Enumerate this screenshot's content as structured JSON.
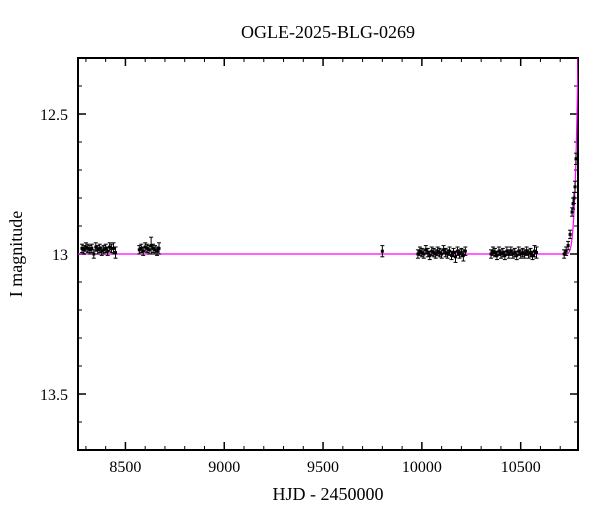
{
  "chart": {
    "type": "scatter+line",
    "title": "OGLE-2025-BLG-0269",
    "title_fontsize": 18,
    "xlabel": "HJD - 2450000",
    "ylabel": "I magnitude",
    "label_fontsize": 18,
    "tick_fontsize": 16,
    "xlim": [
      8260,
      10790
    ],
    "ylim": [
      13.7,
      12.3
    ],
    "xticks": [
      8500,
      9000,
      9500,
      10000,
      10500
    ],
    "yticks_numeric": [
      13.5,
      13,
      12.5
    ],
    "yticks_labels": [
      "13.5",
      "13",
      "12.5"
    ],
    "bg_color": "#ffffff",
    "axis_color": "#000000",
    "axis_width": 2,
    "tick_len": 8,
    "minor_tick_len": 4,
    "x_minor_step": 100,
    "y_minor_step": 0.1,
    "model_line": {
      "color": "#ff00ff",
      "width": 1.2,
      "baseline_y": 13.0,
      "rise_start_x": 10720,
      "rise_end_x": 10790,
      "rise_end_y": 12.3
    },
    "points": {
      "color": "#000000",
      "marker_size": 3,
      "err_cap": 2,
      "series": [
        {
          "x": 8280,
          "y": 12.98,
          "e": 0.015
        },
        {
          "x": 8290,
          "y": 12.985,
          "e": 0.015
        },
        {
          "x": 8300,
          "y": 12.975,
          "e": 0.015
        },
        {
          "x": 8310,
          "y": 12.98,
          "e": 0.015
        },
        {
          "x": 8320,
          "y": 12.985,
          "e": 0.015
        },
        {
          "x": 8330,
          "y": 12.98,
          "e": 0.015
        },
        {
          "x": 8340,
          "y": 13.0,
          "e": 0.015
        },
        {
          "x": 8350,
          "y": 12.975,
          "e": 0.015
        },
        {
          "x": 8360,
          "y": 12.985,
          "e": 0.015
        },
        {
          "x": 8370,
          "y": 12.98,
          "e": 0.015
        },
        {
          "x": 8380,
          "y": 12.99,
          "e": 0.015
        },
        {
          "x": 8390,
          "y": 12.985,
          "e": 0.015
        },
        {
          "x": 8400,
          "y": 12.98,
          "e": 0.015
        },
        {
          "x": 8410,
          "y": 12.99,
          "e": 0.015
        },
        {
          "x": 8420,
          "y": 12.975,
          "e": 0.015
        },
        {
          "x": 8430,
          "y": 12.98,
          "e": 0.015
        },
        {
          "x": 8440,
          "y": 12.98,
          "e": 0.02
        },
        {
          "x": 8450,
          "y": 12.995,
          "e": 0.02
        },
        {
          "x": 8570,
          "y": 12.985,
          "e": 0.015
        },
        {
          "x": 8580,
          "y": 12.98,
          "e": 0.015
        },
        {
          "x": 8590,
          "y": 12.99,
          "e": 0.015
        },
        {
          "x": 8600,
          "y": 12.975,
          "e": 0.015
        },
        {
          "x": 8610,
          "y": 12.98,
          "e": 0.015
        },
        {
          "x": 8620,
          "y": 12.985,
          "e": 0.015
        },
        {
          "x": 8630,
          "y": 12.97,
          "e": 0.03
        },
        {
          "x": 8640,
          "y": 12.98,
          "e": 0.015
        },
        {
          "x": 8650,
          "y": 12.985,
          "e": 0.015
        },
        {
          "x": 8660,
          "y": 12.99,
          "e": 0.015
        },
        {
          "x": 8670,
          "y": 12.98,
          "e": 0.02
        },
        {
          "x": 9800,
          "y": 12.99,
          "e": 0.02
        },
        {
          "x": 9980,
          "y": 13.0,
          "e": 0.015
        },
        {
          "x": 9990,
          "y": 12.99,
          "e": 0.015
        },
        {
          "x": 10000,
          "y": 12.995,
          "e": 0.015
        },
        {
          "x": 10010,
          "y": 13.0,
          "e": 0.015
        },
        {
          "x": 10020,
          "y": 12.985,
          "e": 0.015
        },
        {
          "x": 10030,
          "y": 12.995,
          "e": 0.015
        },
        {
          "x": 10040,
          "y": 13.005,
          "e": 0.015
        },
        {
          "x": 10050,
          "y": 12.99,
          "e": 0.015
        },
        {
          "x": 10060,
          "y": 12.995,
          "e": 0.015
        },
        {
          "x": 10070,
          "y": 13.0,
          "e": 0.015
        },
        {
          "x": 10080,
          "y": 12.99,
          "e": 0.015
        },
        {
          "x": 10090,
          "y": 12.995,
          "e": 0.015
        },
        {
          "x": 10100,
          "y": 13.0,
          "e": 0.015
        },
        {
          "x": 10110,
          "y": 12.985,
          "e": 0.015
        },
        {
          "x": 10120,
          "y": 12.995,
          "e": 0.015
        },
        {
          "x": 10130,
          "y": 13.0,
          "e": 0.015
        },
        {
          "x": 10140,
          "y": 12.99,
          "e": 0.015
        },
        {
          "x": 10150,
          "y": 13.005,
          "e": 0.015
        },
        {
          "x": 10160,
          "y": 12.995,
          "e": 0.015
        },
        {
          "x": 10170,
          "y": 13.01,
          "e": 0.02
        },
        {
          "x": 10180,
          "y": 12.99,
          "e": 0.015
        },
        {
          "x": 10190,
          "y": 13.0,
          "e": 0.015
        },
        {
          "x": 10200,
          "y": 12.995,
          "e": 0.015
        },
        {
          "x": 10210,
          "y": 13.005,
          "e": 0.02
        },
        {
          "x": 10220,
          "y": 12.99,
          "e": 0.015
        },
        {
          "x": 10350,
          "y": 13.0,
          "e": 0.015
        },
        {
          "x": 10360,
          "y": 12.99,
          "e": 0.015
        },
        {
          "x": 10370,
          "y": 12.995,
          "e": 0.015
        },
        {
          "x": 10380,
          "y": 13.005,
          "e": 0.015
        },
        {
          "x": 10390,
          "y": 12.99,
          "e": 0.015
        },
        {
          "x": 10400,
          "y": 13.0,
          "e": 0.015
        },
        {
          "x": 10410,
          "y": 12.995,
          "e": 0.015
        },
        {
          "x": 10420,
          "y": 13.005,
          "e": 0.015
        },
        {
          "x": 10430,
          "y": 12.99,
          "e": 0.015
        },
        {
          "x": 10440,
          "y": 13.0,
          "e": 0.015
        },
        {
          "x": 10450,
          "y": 12.99,
          "e": 0.015
        },
        {
          "x": 10460,
          "y": 13.0,
          "e": 0.015
        },
        {
          "x": 10470,
          "y": 12.995,
          "e": 0.015
        },
        {
          "x": 10480,
          "y": 13.005,
          "e": 0.015
        },
        {
          "x": 10490,
          "y": 12.99,
          "e": 0.015
        },
        {
          "x": 10500,
          "y": 13.0,
          "e": 0.015
        },
        {
          "x": 10510,
          "y": 12.995,
          "e": 0.015
        },
        {
          "x": 10520,
          "y": 13.0,
          "e": 0.015
        },
        {
          "x": 10530,
          "y": 12.99,
          "e": 0.015
        },
        {
          "x": 10540,
          "y": 13.0,
          "e": 0.015
        },
        {
          "x": 10550,
          "y": 12.995,
          "e": 0.015
        },
        {
          "x": 10560,
          "y": 13.005,
          "e": 0.015
        },
        {
          "x": 10570,
          "y": 12.99,
          "e": 0.02
        },
        {
          "x": 10580,
          "y": 12.995,
          "e": 0.02
        },
        {
          "x": 10720,
          "y": 13.0,
          "e": 0.015
        },
        {
          "x": 10730,
          "y": 12.99,
          "e": 0.015
        },
        {
          "x": 10740,
          "y": 12.97,
          "e": 0.015
        },
        {
          "x": 10750,
          "y": 12.93,
          "e": 0.015
        },
        {
          "x": 10760,
          "y": 12.85,
          "e": 0.015
        },
        {
          "x": 10765,
          "y": 12.82,
          "e": 0.02
        },
        {
          "x": 10770,
          "y": 12.8,
          "e": 0.02
        },
        {
          "x": 10775,
          "y": 12.76,
          "e": 0.02
        },
        {
          "x": 10780,
          "y": 12.66,
          "e": 0.02
        }
      ]
    }
  }
}
